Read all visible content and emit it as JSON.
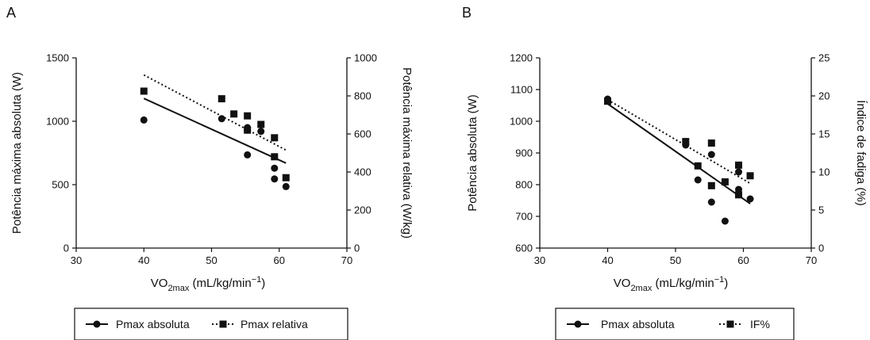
{
  "chart_data": [
    {
      "type": "scatter",
      "panel_label": "A",
      "xlabel_main": "VO",
      "xlabel_sub": "2max",
      "xlabel_rest": " (mL/kg/min",
      "xlabel_sup": "−1",
      "xlabel_end": ")",
      "ylabel_left": "Potência máxima absoluta (W)",
      "ylabel_right": "Potência máxima relativa (W/kg)",
      "xlim": [
        30,
        70
      ],
      "ylim_left": [
        0,
        1500
      ],
      "ylim_right": [
        0,
        1000
      ],
      "xticks": [
        "30",
        "40",
        "50",
        "60",
        "70"
      ],
      "yticks_left": [
        "0",
        "500",
        "1000",
        "1500"
      ],
      "yticks_right": [
        "0",
        "200",
        "400",
        "600",
        "800",
        "1000"
      ],
      "series": [
        {
          "name": "Pmax absoluta",
          "axis": "left",
          "marker": "circle",
          "line_style": "solid",
          "points": [
            [
              40,
              1010
            ],
            [
              51.5,
              1020
            ],
            [
              55.3,
              950
            ],
            [
              55.3,
              930
            ],
            [
              55.3,
              735
            ],
            [
              57.3,
              920
            ],
            [
              59.3,
              630
            ],
            [
              59.3,
              545
            ],
            [
              61,
              485
            ]
          ],
          "trend": [
            [
              40,
              1180
            ],
            [
              61,
              670
            ]
          ]
        },
        {
          "name": "Pmax relativa",
          "axis": "right",
          "marker": "square",
          "line_style": "dotted",
          "points": [
            [
              40,
              825
            ],
            [
              51.5,
              785
            ],
            [
              53.3,
              705
            ],
            [
              55.3,
              695
            ],
            [
              55.3,
              620
            ],
            [
              57.3,
              650
            ],
            [
              59.3,
              580
            ],
            [
              59.3,
              480
            ],
            [
              61,
              370
            ]
          ],
          "trend": [
            [
              40,
              910
            ],
            [
              61,
              515
            ]
          ]
        }
      ],
      "legend": {
        "placement": "bottom",
        "entries": [
          "Pmax absoluta",
          "Pmax relativa"
        ]
      }
    },
    {
      "type": "scatter",
      "panel_label": "B",
      "xlabel_main": "VO",
      "xlabel_sub": "2max",
      "xlabel_rest": " (mL/kg/min",
      "xlabel_sup": "−1",
      "xlabel_end": ")",
      "ylabel_left": "Potência absoluta (W)",
      "ylabel_right": "Índice de fadiga (%)",
      "xlim": [
        30,
        70
      ],
      "ylim_left": [
        600,
        1200
      ],
      "ylim_right": [
        0,
        25
      ],
      "xticks": [
        "30",
        "40",
        "50",
        "60",
        "70"
      ],
      "yticks_left": [
        "600",
        "700",
        "800",
        "900",
        "1000",
        "1100",
        "1200"
      ],
      "yticks_right": [
        "0",
        "5",
        "10",
        "15",
        "20",
        "25"
      ],
      "series": [
        {
          "name": "Pmax absoluta",
          "axis": "left",
          "marker": "circle",
          "line_style": "solid",
          "points": [
            [
              40,
              1070
            ],
            [
              40,
              1065
            ],
            [
              51.5,
              925
            ],
            [
              53.3,
              815
            ],
            [
              55.3,
              895
            ],
            [
              55.3,
              745
            ],
            [
              57.3,
              685
            ],
            [
              59.3,
              840
            ],
            [
              59.3,
              785
            ],
            [
              61,
              755
            ]
          ],
          "trend": [
            [
              40,
              1055
            ],
            [
              61,
              740
            ]
          ]
        },
        {
          "name": "IF%",
          "axis": "right",
          "marker": "square",
          "line_style": "dotted",
          "points": [
            [
              40,
              19.3
            ],
            [
              51.5,
              14
            ],
            [
              53.3,
              10.8
            ],
            [
              55.3,
              13.8
            ],
            [
              55.3,
              8.2
            ],
            [
              57.3,
              8.7
            ],
            [
              59.3,
              10.9
            ],
            [
              59.3,
              7
            ],
            [
              61,
              9.5
            ]
          ],
          "trend": [
            [
              40,
              19.5
            ],
            [
              61,
              8.5
            ]
          ]
        }
      ],
      "legend": {
        "placement": "bottom",
        "entries": [
          "Pmax absoluta",
          "IF%"
        ]
      }
    }
  ]
}
